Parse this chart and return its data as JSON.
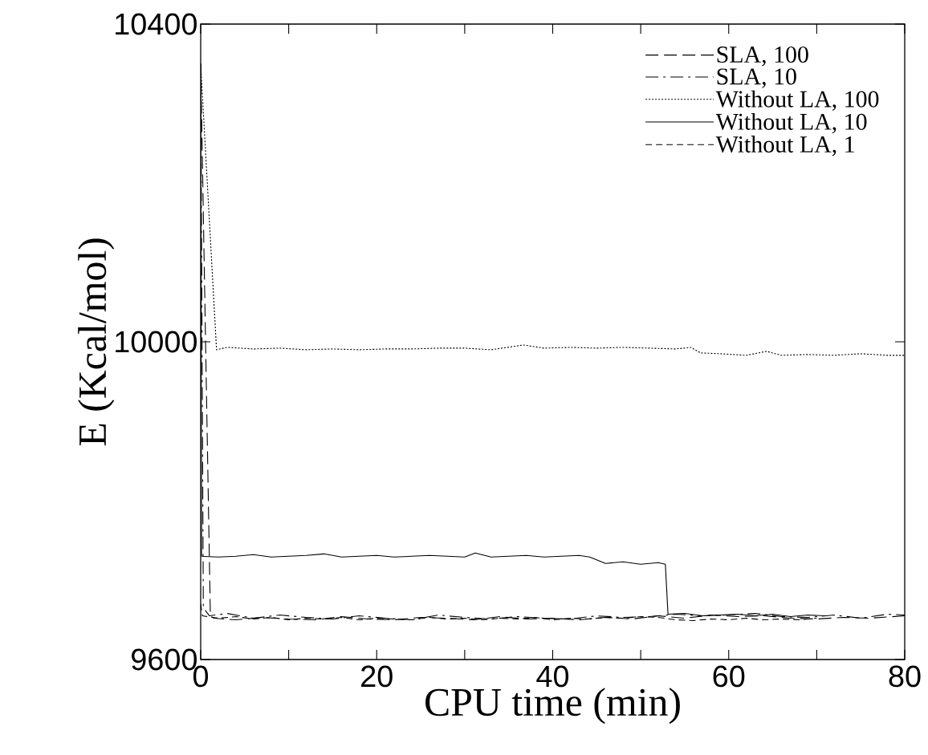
{
  "chart_data": {
    "type": "line",
    "xlabel": "CPU time (min)",
    "ylabel": "E (Kcal/mol)",
    "xlim": [
      0,
      80
    ],
    "ylim": [
      9600,
      10400
    ],
    "xticks": [
      0,
      {
        "value": 10,
        "label": null
      },
      20,
      {
        "value": 30,
        "label": null
      },
      40,
      {
        "value": 50,
        "label": null
      },
      60,
      {
        "value": 70,
        "label": null
      },
      80
    ],
    "yticks": [
      9600,
      10000,
      10400
    ],
    "legend": "top right",
    "grid": false,
    "marker": "none",
    "series": [
      {
        "name": "SLA, 100",
        "color": "#000000",
        "line_style": "long dashed",
        "x": [
          0,
          1.1,
          1.5,
          4,
          7,
          10,
          13,
          16,
          19,
          22,
          25,
          28,
          31,
          34,
          37,
          40,
          43,
          46,
          49,
          52,
          55,
          58,
          61,
          64,
          67,
          70,
          73,
          76,
          80
        ],
        "values": [
          10350,
          9655,
          9652,
          9650,
          9653,
          9651,
          9650,
          9654,
          9651,
          9650,
          9653,
          9652,
          9650,
          9654,
          9651,
          9652,
          9650,
          9653,
          9651,
          9655,
          9652,
          9656,
          9654,
          9655,
          9652,
          9651,
          9653,
          9652,
          9655
        ]
      },
      {
        "name": "SLA, 10",
        "color": "#000000",
        "line_style": "dash dot",
        "x": [
          0,
          0.3,
          1,
          3,
          6,
          9,
          12,
          15,
          18,
          21,
          24,
          27,
          30,
          33,
          36,
          39,
          42,
          45,
          48,
          51,
          54,
          57,
          60,
          63,
          66,
          69,
          72,
          75,
          78,
          80
        ],
        "values": [
          10350,
          9665,
          9655,
          9658,
          9652,
          9656,
          9653,
          9651,
          9655,
          9652,
          9650,
          9656,
          9653,
          9651,
          9654,
          9652,
          9651,
          9655,
          9653,
          9654,
          9657,
          9655,
          9656,
          9658,
          9654,
          9653,
          9656,
          9652,
          9657,
          9656
        ]
      },
      {
        "name": "Without LA, 100",
        "color": "#000000",
        "line_style": "dotted",
        "x": [
          0,
          1.8,
          3,
          6,
          9,
          12,
          15,
          18,
          21,
          24,
          27,
          30,
          33,
          36.7,
          39,
          42,
          45,
          48,
          51,
          54,
          55.7,
          56.8,
          59,
          62,
          64.3,
          66,
          69,
          72,
          75,
          78,
          80
        ],
        "values": [
          10350,
          9990,
          9993,
          9991,
          9992,
          9990,
          9991,
          9990,
          9991,
          9991,
          9992,
          9992,
          9990,
          9996,
          9992,
          9993,
          9992,
          9993,
          9992,
          9991,
          9993,
          9986,
          9985,
          9983,
          9988,
          9983,
          9984,
          9983,
          9985,
          9983,
          9983
        ]
      },
      {
        "name": "Without LA, 10",
        "color": "#000000",
        "line_style": "solid",
        "x": [
          0,
          0.1,
          2,
          4,
          6,
          8,
          10,
          12,
          14,
          16,
          18,
          20,
          22,
          24,
          26,
          28,
          30,
          31.2,
          33,
          35,
          37,
          39,
          41,
          43,
          44.2,
          46,
          48,
          50,
          52,
          52.8,
          53.1,
          55,
          57,
          59,
          61,
          63,
          65,
          67,
          69,
          71
        ],
        "values": [
          10350,
          9730,
          9729,
          9730,
          9732,
          9729,
          9730,
          9731,
          9733,
          9729,
          9730,
          9731,
          9729,
          9730,
          9731,
          9730,
          9729,
          9734,
          9729,
          9730,
          9731,
          9729,
          9730,
          9731,
          9729,
          9721,
          9723,
          9720,
          9722,
          9720,
          9657,
          9658,
          9655,
          9656,
          9657,
          9655,
          9657,
          9654,
          9656,
          9655
        ]
      },
      {
        "name": "Without LA, 1",
        "color": "#000000",
        "line_style": "dashed",
        "x": [
          0,
          0.2,
          2,
          4,
          6,
          8,
          10,
          12,
          14,
          16,
          18,
          20,
          22,
          24,
          26,
          28,
          30,
          32,
          34,
          36,
          38,
          40,
          42,
          44,
          46,
          48,
          50,
          52,
          54,
          56,
          58,
          60,
          62,
          64,
          66,
          68,
          70
        ],
        "values": [
          9670,
          9655,
          9652,
          9654,
          9651,
          9653,
          9650,
          9652,
          9651,
          9653,
          9650,
          9652,
          9651,
          9650,
          9653,
          9651,
          9652,
          9650,
          9652,
          9651,
          9653,
          9650,
          9652,
          9651,
          9653,
          9652,
          9654,
          9653,
          9650,
          9649,
          9651,
          9650,
          9652,
          9650,
          9651,
          9650,
          9652
        ]
      }
    ]
  }
}
